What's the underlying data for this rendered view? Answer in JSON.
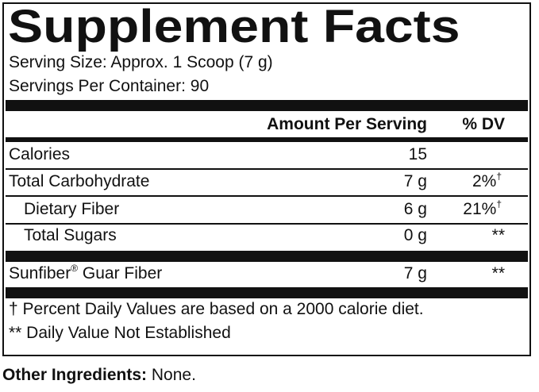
{
  "label": {
    "title": "Supplement Facts",
    "serving_size": "Serving Size: Approx. 1 Scoop (7 g)",
    "servings_per_container": "Servings Per Container: 90",
    "header": {
      "amount": "Amount Per Serving",
      "dv": "% DV"
    },
    "rows": [
      {
        "name": "Calories",
        "amount": "15"
      },
      {
        "name": "Total Carbohydrate",
        "amount": "7 g",
        "dv": "2%",
        "dv_note": "†"
      },
      {
        "name": "Dietary Fiber",
        "amount": "6 g",
        "dv": "21%",
        "dv_note": "†"
      },
      {
        "name": "Total Sugars",
        "amount": "0 g",
        "dv": "**"
      }
    ],
    "extra_row": {
      "name": "Sunfiber",
      "mark": "®",
      "name_rest": "Guar Fiber",
      "amount": "7 g",
      "dv": "**"
    },
    "footnotes": [
      "† Percent Daily Values are based on a 2000 calorie diet.",
      "** Daily Value Not Established"
    ]
  },
  "other_ingredients": {
    "label": "Other Ingredients:",
    "value": "None."
  }
}
